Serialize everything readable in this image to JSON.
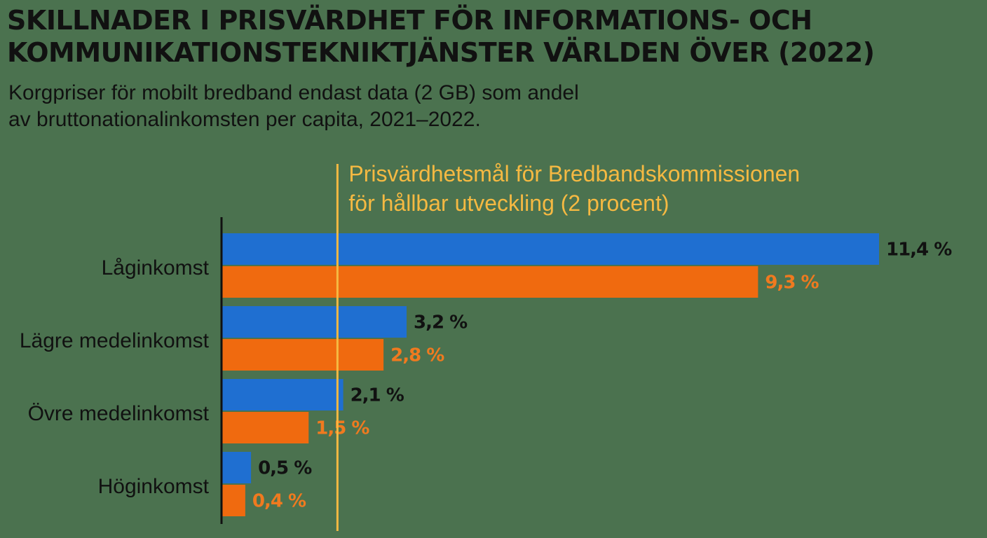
{
  "title_line1": "SKILLNADER I PRISVÄRDHET FÖR INFORMATIONS- OCH",
  "title_line2": "KOMMUNIKATIONSTEKNIKTJÄNSTER VÄRLDEN ÖVER (2022)",
  "subtitle_line1": "Korgpriser för mobilt bredband endast data (2 GB) som andel",
  "subtitle_line2": "av bruttonationalinkomsten per capita, 2021–2022.",
  "colors": {
    "background": "#4b724f",
    "series_1": "#1f6fd1",
    "series_2": "#f06a0f",
    "reference_line": "#f5b942",
    "text": "#111111",
    "orange_label": "#f07a1f"
  },
  "chart_data": {
    "type": "bar",
    "orientation": "horizontal",
    "categories": [
      "Låginkomst",
      "Lägre medelinkomst",
      "Övre medelinkomst",
      "Höginkomst"
    ],
    "series": [
      {
        "values": [
          11.4,
          3.2,
          2.1,
          0.5
        ],
        "labels": [
          "11,4 %",
          "3,2 %",
          "2,1 %",
          "0,5 %"
        ],
        "color": "#1f6fd1"
      },
      {
        "values": [
          9.3,
          2.8,
          1.5,
          0.4
        ],
        "labels": [
          "9,3 %",
          "2,8 %",
          "1,5 %",
          "0,4 %"
        ],
        "color": "#f06a0f"
      }
    ],
    "reference_line": {
      "value": 2,
      "label_line1": "Prisvärdhetsmål för Bredbandskommissionen",
      "label_line2": "för hållbar utveckling (2 procent)"
    },
    "xlim": [
      0,
      11.4
    ],
    "grid": false,
    "legend": "none"
  }
}
